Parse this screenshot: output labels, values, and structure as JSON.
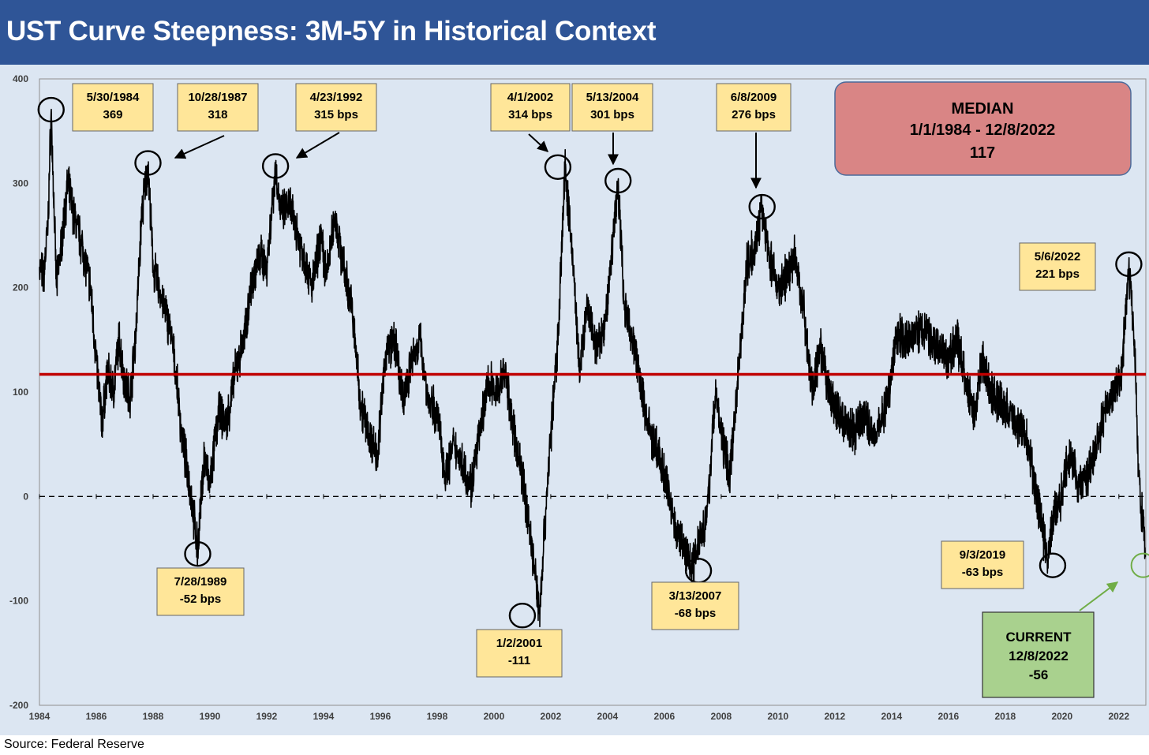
{
  "title": "UST Curve Steepness: 3M-5Y in Historical Context",
  "source": "Source: Federal Reserve",
  "colors": {
    "title_bg": "#2f5597",
    "plot_bg": "#dce6f2",
    "median_line": "#c00000",
    "series": "#000000",
    "callout_bg": "#ffe699",
    "median_box": "#d98585",
    "current_box": "#a9d18e",
    "current_arrow": "#70ad47"
  },
  "chart_data": {
    "type": "line",
    "title": "UST Curve Steepness: 3M-5Y in Historical Context",
    "xlabel": "",
    "ylabel": "",
    "xlim": [
      1984,
      2022.95
    ],
    "ylim": [
      -200,
      400
    ],
    "yticks": [
      400,
      300,
      200,
      100,
      0,
      -100,
      -200
    ],
    "ytick_labels": [
      "400",
      "300",
      "200",
      "100",
      "0",
      "-100",
      "-200"
    ],
    "xticks": [
      1984,
      1986,
      1988,
      1990,
      1992,
      1994,
      1996,
      1998,
      2000,
      2002,
      2004,
      2006,
      2008,
      2010,
      2012,
      2014,
      2016,
      2018,
      2020,
      2022
    ],
    "xtick_labels": [
      "1984",
      "1986",
      "1988",
      "1990",
      "1992",
      "1994",
      "1996",
      "1998",
      "2000",
      "2002",
      "2004",
      "2006",
      "2008",
      "2010",
      "2012",
      "2014",
      "2016",
      "2018",
      "2020",
      "2022"
    ],
    "median_value": 117,
    "zero_line": 0,
    "series": [
      {
        "name": "3M-5Y spread (bps)",
        "x": [
          1984.0,
          1984.15,
          1984.3,
          1984.41,
          1984.6,
          1984.8,
          1985.0,
          1985.2,
          1985.5,
          1985.8,
          1986.0,
          1986.2,
          1986.4,
          1986.6,
          1986.8,
          1987.0,
          1987.2,
          1987.4,
          1987.6,
          1987.82,
          1988.0,
          1988.2,
          1988.4,
          1988.6,
          1988.8,
          1989.0,
          1989.3,
          1989.57,
          1989.8,
          1990.0,
          1990.3,
          1990.6,
          1990.9,
          1991.2,
          1991.5,
          1991.8,
          1992.0,
          1992.31,
          1992.5,
          1992.8,
          1993.0,
          1993.3,
          1993.6,
          1993.9,
          1994.1,
          1994.4,
          1994.7,
          1995.0,
          1995.3,
          1995.6,
          1995.9,
          1996.2,
          1996.5,
          1996.8,
          1997.1,
          1997.4,
          1997.7,
          1998.0,
          1998.3,
          1998.6,
          1998.9,
          1999.2,
          1999.5,
          1999.8,
          2000.1,
          2000.4,
          2000.7,
          2001.0,
          2001.3,
          2001.6,
          2001.9,
          2002.25,
          2002.5,
          2002.8,
          2003.0,
          2003.3,
          2003.6,
          2003.9,
          2004.2,
          2004.37,
          2004.6,
          2004.9,
          2005.2,
          2005.5,
          2005.8,
          2006.1,
          2006.4,
          2006.7,
          2007.0,
          2007.2,
          2007.5,
          2007.8,
          2008.0,
          2008.3,
          2008.6,
          2008.9,
          2009.2,
          2009.44,
          2009.7,
          2010.0,
          2010.3,
          2010.6,
          2010.9,
          2011.2,
          2011.5,
          2011.8,
          2012.1,
          2012.4,
          2012.7,
          2013.0,
          2013.3,
          2013.6,
          2013.9,
          2014.2,
          2014.5,
          2014.8,
          2015.1,
          2015.4,
          2015.7,
          2016.0,
          2016.3,
          2016.6,
          2016.9,
          2017.2,
          2017.5,
          2017.8,
          2018.1,
          2018.4,
          2018.7,
          2019.0,
          2019.3,
          2019.5,
          2019.67,
          2019.9,
          2020.1,
          2020.3,
          2020.6,
          2020.9,
          2021.2,
          2021.5,
          2021.8,
          2022.1,
          2022.35,
          2022.55,
          2022.7,
          2022.85,
          2022.94
        ],
        "y": [
          220,
          210,
          260,
          369,
          200,
          250,
          300,
          270,
          240,
          200,
          130,
          70,
          120,
          100,
          150,
          110,
          95,
          160,
          270,
          318,
          220,
          200,
          180,
          160,
          120,
          60,
          10,
          -52,
          40,
          10,
          80,
          70,
          120,
          150,
          210,
          230,
          220,
          315,
          270,
          280,
          260,
          230,
          200,
          250,
          210,
          270,
          220,
          180,
          90,
          60,
          40,
          140,
          150,
          90,
          130,
          150,
          90,
          80,
          20,
          50,
          30,
          10,
          60,
          110,
          100,
          120,
          60,
          20,
          -40,
          -111,
          20,
          150,
          314,
          220,
          120,
          180,
          140,
          160,
          250,
          301,
          180,
          150,
          100,
          60,
          40,
          10,
          -30,
          -50,
          -68,
          -40,
          -20,
          100,
          60,
          20,
          120,
          220,
          240,
          276,
          230,
          200,
          210,
          230,
          180,
          100,
          140,
          100,
          80,
          70,
          60,
          80,
          60,
          70,
          100,
          160,
          150,
          155,
          160,
          150,
          140,
          130,
          150,
          110,
          80,
          130,
          100,
          90,
          80,
          70,
          60,
          20,
          -30,
          -63,
          -20,
          -10,
          20,
          40,
          10,
          20,
          50,
          80,
          100,
          120,
          221,
          150,
          20,
          -30,
          -56
        ]
      }
    ],
    "annotations": [
      {
        "date": "5/30/1984",
        "value": "369",
        "x": 1984.41,
        "y": 369,
        "type": "peak"
      },
      {
        "date": "10/28/1987",
        "value": "318",
        "x": 1987.82,
        "y": 318,
        "type": "peak"
      },
      {
        "date": "4/23/1992",
        "value": "315 bps",
        "x": 1992.31,
        "y": 315,
        "type": "peak"
      },
      {
        "date": "4/1/2002",
        "value": "314 bps",
        "x": 2002.25,
        "y": 314,
        "type": "peak"
      },
      {
        "date": "5/13/2004",
        "value": "301 bps",
        "x": 2004.37,
        "y": 301,
        "type": "peak"
      },
      {
        "date": "6/8/2009",
        "value": "276 bps",
        "x": 2009.44,
        "y": 276,
        "type": "peak"
      },
      {
        "date": "5/6/2022",
        "value": "221 bps",
        "x": 2022.35,
        "y": 221,
        "type": "peak"
      },
      {
        "date": "7/28/1989",
        "value": "-52 bps",
        "x": 1989.57,
        "y": -52,
        "type": "trough"
      },
      {
        "date": "1/2/2001",
        "value": "-111",
        "x": 2001.0,
        "y": -111,
        "type": "trough"
      },
      {
        "date": "3/13/2007",
        "value": "-68 bps",
        "x": 2007.2,
        "y": -68,
        "type": "trough"
      },
      {
        "date": "9/3/2019",
        "value": "-63 bps",
        "x": 2019.67,
        "y": -63,
        "type": "trough"
      }
    ],
    "median_box": {
      "line1": "MEDIAN",
      "line2": "1/1/1984 - 12/8/2022",
      "line3": "117"
    },
    "current_box": {
      "line1": "CURRENT",
      "line2": "12/8/2022",
      "line3": "-56",
      "x": 2022.94,
      "y": -66
    }
  }
}
